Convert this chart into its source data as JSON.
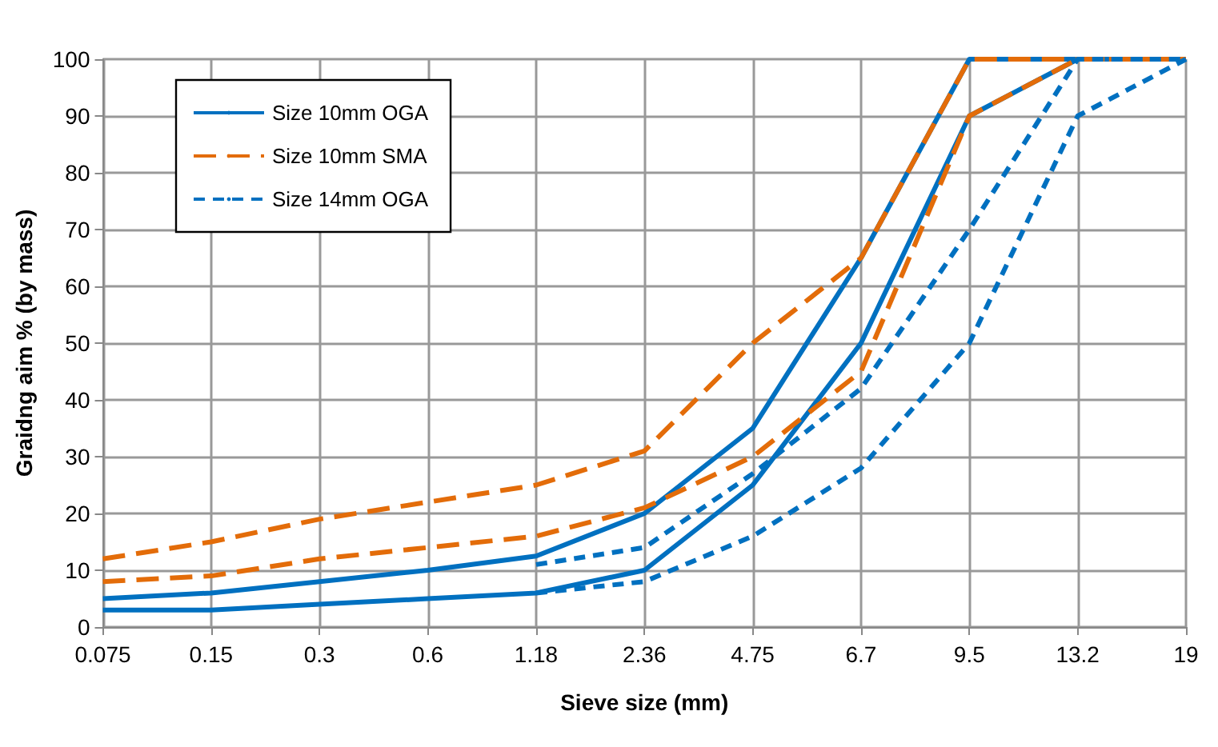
{
  "chart_data": {
    "type": "line",
    "xlabel": "Sieve size (mm)",
    "ylabel": "Graidng aim % (by mass)",
    "categories": [
      "0.075",
      "0.15",
      "0.3",
      "0.6",
      "1.18",
      "2.36",
      "4.75",
      "6.7",
      "9.5",
      "13.2",
      "19"
    ],
    "ylim": [
      0,
      100
    ],
    "yticks": [
      0,
      10,
      20,
      30,
      40,
      50,
      60,
      70,
      80,
      90,
      100
    ],
    "grid": true,
    "legend": "top left",
    "marker": "none",
    "series": [
      {
        "name": "Size 10mm OGA",
        "color": "#0070c0",
        "line_style": "solid",
        "values": [
          5,
          6,
          8,
          10,
          12.5,
          20,
          35,
          65,
          100,
          100,
          100
        ]
      },
      {
        "color": "#0070c0",
        "line_style": "solid",
        "values": [
          3,
          3,
          4,
          5,
          6,
          10,
          25,
          50,
          90,
          100,
          100
        ]
      },
      {
        "name": "Size 10mm SMA",
        "color": "#e36c09",
        "line_style": "dashed",
        "values": [
          12,
          15,
          19,
          22,
          25,
          31,
          50,
          65,
          100,
          100,
          100
        ]
      },
      {
        "color": "#e36c09",
        "line_style": "dashed",
        "values": [
          8,
          9,
          12,
          14,
          16,
          21,
          30,
          45,
          90,
          100,
          100
        ]
      },
      {
        "name": "Size 14mm OGA",
        "color": "#0070c0",
        "line_style": "dotted",
        "values": [
          null,
          null,
          null,
          null,
          11,
          14,
          27,
          42,
          70,
          100,
          100
        ]
      },
      {
        "color": "#0070c0",
        "line_style": "dotted",
        "values": [
          null,
          null,
          null,
          null,
          6,
          8,
          16,
          28,
          50,
          90,
          100
        ]
      }
    ]
  }
}
